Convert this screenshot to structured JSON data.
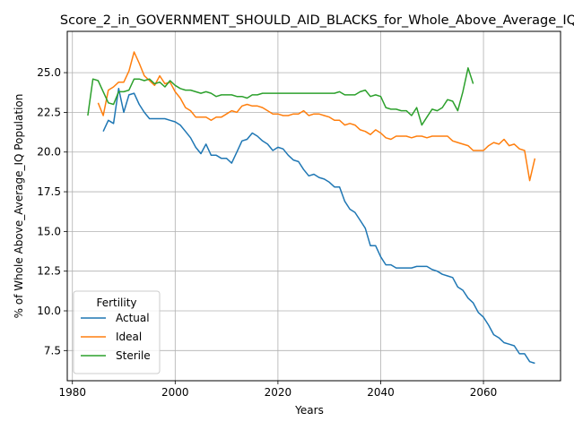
{
  "chart_data": {
    "type": "line",
    "title": "Score_2_in_GOVERNMENT_SHOULD_AID_BLACKS_for_Whole_Above_Average_IQ",
    "xlabel": "Years",
    "ylabel": "% of Whole Above_Average_IQ Population",
    "xlim": [
      1979,
      2075
    ],
    "ylim": [
      5.6,
      27.6
    ],
    "xticks": [
      1980,
      2000,
      2020,
      2040,
      2060
    ],
    "xtick_labels": [
      "1980",
      "2000",
      "2020",
      "2040",
      "2060"
    ],
    "yticks": [
      7.5,
      10.0,
      12.5,
      15.0,
      17.5,
      20.0,
      22.5,
      25.0
    ],
    "ytick_labels": [
      "7.5",
      "10.0",
      "12.5",
      "15.0",
      "17.5",
      "20.0",
      "22.5",
      "25.0"
    ],
    "grid": true,
    "legend": {
      "title": "Fertility",
      "placement": "lower-left"
    },
    "series": [
      {
        "name": "Actual",
        "color": "#1f77b4",
        "x": [
          1986,
          1987,
          1988,
          1989,
          1990,
          1991,
          1992,
          1993,
          1994,
          1995,
          1996,
          1997,
          1998,
          1999,
          2000,
          2001,
          2002,
          2003,
          2004,
          2005,
          2006,
          2007,
          2008,
          2009,
          2010,
          2011,
          2012,
          2013,
          2014,
          2015,
          2016,
          2017,
          2018,
          2019,
          2020,
          2021,
          2022,
          2023,
          2024,
          2025,
          2026,
          2027,
          2028,
          2029,
          2030,
          2031,
          2032,
          2033,
          2034,
          2035,
          2036,
          2037,
          2038,
          2039,
          2040,
          2041,
          2042,
          2043,
          2044,
          2045,
          2046,
          2047,
          2048,
          2049,
          2050,
          2051,
          2052,
          2053,
          2054,
          2055,
          2056,
          2057,
          2058,
          2059,
          2060,
          2061,
          2062,
          2063,
          2064,
          2065,
          2066,
          2067,
          2068,
          2069,
          2070
        ],
        "y": [
          21.3,
          22.0,
          21.8,
          24.0,
          22.5,
          23.6,
          23.7,
          23.0,
          22.5,
          22.1,
          22.1,
          22.1,
          22.1,
          22.0,
          21.9,
          21.7,
          21.3,
          20.9,
          20.3,
          19.9,
          20.5,
          19.8,
          19.8,
          19.6,
          19.6,
          19.3,
          20.0,
          20.7,
          20.8,
          21.2,
          21.0,
          20.7,
          20.5,
          20.1,
          20.3,
          20.2,
          19.8,
          19.5,
          19.4,
          18.9,
          18.5,
          18.6,
          18.4,
          18.3,
          18.1,
          17.8,
          17.8,
          16.9,
          16.4,
          16.2,
          15.7,
          15.2,
          14.1,
          14.1,
          13.4,
          12.9,
          12.9,
          12.7,
          12.7,
          12.7,
          12.7,
          12.8,
          12.8,
          12.8,
          12.6,
          12.5,
          12.3,
          12.2,
          12.1,
          11.5,
          11.3,
          10.8,
          10.5,
          9.9,
          9.6,
          9.1,
          8.5,
          8.3,
          8.0,
          7.9,
          7.8,
          7.3,
          7.3,
          6.8,
          6.7
        ]
      },
      {
        "name": "Ideal",
        "color": "#ff7f0e",
        "x": [
          1985,
          1986,
          1987,
          1988,
          1989,
          1990,
          1991,
          1992,
          1993,
          1994,
          1995,
          1996,
          1997,
          1998,
          1999,
          2000,
          2001,
          2002,
          2003,
          2004,
          2005,
          2006,
          2007,
          2008,
          2009,
          2010,
          2011,
          2012,
          2013,
          2014,
          2015,
          2016,
          2017,
          2018,
          2019,
          2020,
          2021,
          2022,
          2023,
          2024,
          2025,
          2026,
          2027,
          2028,
          2029,
          2030,
          2031,
          2032,
          2033,
          2034,
          2035,
          2036,
          2037,
          2038,
          2039,
          2040,
          2041,
          2042,
          2043,
          2044,
          2045,
          2046,
          2047,
          2048,
          2049,
          2050,
          2051,
          2052,
          2053,
          2054,
          2055,
          2056,
          2057,
          2058,
          2059,
          2060,
          2061,
          2062,
          2063,
          2064,
          2065,
          2066,
          2067,
          2068,
          2069,
          2070
        ],
        "y": [
          23.1,
          22.3,
          23.9,
          24.1,
          24.4,
          24.4,
          25.1,
          26.3,
          25.6,
          24.8,
          24.5,
          24.2,
          24.8,
          24.3,
          24.4,
          23.8,
          23.4,
          22.8,
          22.6,
          22.2,
          22.2,
          22.2,
          22.0,
          22.2,
          22.2,
          22.4,
          22.6,
          22.5,
          22.9,
          23.0,
          22.9,
          22.9,
          22.8,
          22.6,
          22.4,
          22.4,
          22.3,
          22.3,
          22.4,
          22.4,
          22.6,
          22.3,
          22.4,
          22.4,
          22.3,
          22.2,
          22.0,
          22.0,
          21.7,
          21.8,
          21.7,
          21.4,
          21.3,
          21.1,
          21.4,
          21.2,
          20.9,
          20.8,
          21.0,
          21.0,
          21.0,
          20.9,
          21.0,
          21.0,
          20.9,
          21.0,
          21.0,
          21.0,
          21.0,
          20.7,
          20.6,
          20.5,
          20.4,
          20.1,
          20.1,
          20.1,
          20.4,
          20.6,
          20.5,
          20.8,
          20.4,
          20.5,
          20.2,
          20.1,
          18.2,
          19.6
        ]
      },
      {
        "name": "Sterile",
        "color": "#2ca02c",
        "x": [
          1983,
          1984,
          1985,
          1986,
          1987,
          1988,
          1989,
          1990,
          1991,
          1992,
          1993,
          1994,
          1995,
          1996,
          1997,
          1998,
          1999,
          2000,
          2001,
          2002,
          2003,
          2004,
          2005,
          2006,
          2007,
          2008,
          2009,
          2010,
          2011,
          2012,
          2013,
          2014,
          2015,
          2016,
          2017,
          2018,
          2019,
          2020,
          2021,
          2022,
          2023,
          2024,
          2025,
          2026,
          2027,
          2028,
          2029,
          2030,
          2031,
          2032,
          2033,
          2034,
          2035,
          2036,
          2037,
          2038,
          2039,
          2040,
          2041,
          2042,
          2043,
          2044,
          2045,
          2046,
          2047,
          2048,
          2049,
          2050,
          2051,
          2052,
          2053,
          2054,
          2055,
          2056,
          2057,
          2058
        ],
        "y": [
          22.3,
          24.6,
          24.5,
          23.8,
          23.1,
          23.0,
          23.8,
          23.8,
          23.9,
          24.6,
          24.6,
          24.5,
          24.6,
          24.3,
          24.4,
          24.1,
          24.5,
          24.2,
          24.0,
          23.9,
          23.9,
          23.8,
          23.7,
          23.8,
          23.7,
          23.5,
          23.6,
          23.6,
          23.6,
          23.5,
          23.5,
          23.4,
          23.6,
          23.6,
          23.7,
          23.7,
          23.7,
          23.7,
          23.7,
          23.7,
          23.7,
          23.7,
          23.7,
          23.7,
          23.7,
          23.7,
          23.7,
          23.7,
          23.7,
          23.8,
          23.6,
          23.6,
          23.6,
          23.8,
          23.9,
          23.5,
          23.6,
          23.5,
          22.8,
          22.7,
          22.7,
          22.6,
          22.6,
          22.3,
          22.8,
          21.7,
          22.2,
          22.7,
          22.6,
          22.8,
          23.3,
          23.2,
          22.6,
          23.8,
          25.3,
          24.3
        ]
      }
    ]
  }
}
